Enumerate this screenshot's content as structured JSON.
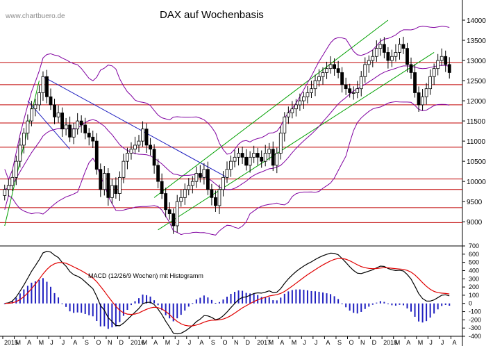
{
  "watermark": "www.chartbuero.de",
  "colors": {
    "candle_fill": "#000000",
    "bollinger": "#8000a0",
    "support_lines": "#c00000",
    "channel_lines": "#00a000",
    "downtrend_lines": "#2020c0",
    "macd_line": "#000000",
    "signal_line": "#e00000",
    "histogram": "#2020c0"
  },
  "chart_data": [
    {
      "type": "candlestick",
      "title": "DAX auf Wochenbasis",
      "ylim": [
        8400,
        14500
      ],
      "y_ticks": [
        9000,
        9500,
        10000,
        10500,
        11000,
        11500,
        12000,
        12500,
        13000,
        13500,
        14000
      ],
      "y_tick_labels": [
        "9000",
        "9500",
        "10000",
        "10500",
        "11000",
        "11500",
        "12000",
        "12500",
        "13000",
        "13500",
        "14000"
      ],
      "horizontal_levels": [
        8980,
        9350,
        9800,
        10060,
        10850,
        11450,
        11900,
        12400,
        12950
      ],
      "closes": [
        9800,
        9900,
        10100,
        10500,
        10900,
        11200,
        11500,
        11800,
        11900,
        12200,
        12600,
        12100,
        11900,
        11600,
        11700,
        11300,
        11400,
        11100,
        11300,
        11500,
        11400,
        11200,
        11100,
        11000,
        10300,
        9800,
        10200,
        9600,
        9900,
        9700,
        10100,
        10500,
        10700,
        10800,
        10900,
        11000,
        11300,
        10900,
        10800,
        10400,
        10000,
        9700,
        9300,
        9200,
        8900,
        9500,
        9600,
        9800,
        9900,
        10000,
        10200,
        10100,
        10300,
        9800,
        9600,
        9400,
        9800,
        10100,
        10300,
        10500,
        10600,
        10700,
        10600,
        10400,
        10600,
        10700,
        10600,
        10500,
        10700,
        10800,
        10400,
        10700,
        11200,
        11600,
        11700,
        11800,
        11900,
        12000,
        12100,
        12200,
        12300,
        12500,
        12600,
        12700,
        12800,
        12900,
        12800,
        12700,
        12400,
        12300,
        12200,
        12200,
        12300,
        12600,
        12900,
        13000,
        13100,
        13300,
        13400,
        13200,
        13000,
        13100,
        13200,
        13400,
        13300,
        12900,
        12700,
        12200,
        11900,
        12100,
        12300,
        12600,
        12800,
        13000,
        13100,
        12900,
        12700
      ],
      "macd_panel": {
        "title": "MACD (12/26/9 Wochen) mit Histogramm",
        "ylim": [
          -400,
          700
        ],
        "y_ticks": [
          -400,
          -300,
          -200,
          -100,
          0,
          100,
          200,
          300,
          400,
          500,
          600,
          700
        ],
        "y_tick_labels": [
          "-400",
          "-300",
          "-200",
          "-100",
          "0",
          "100",
          "200",
          "300",
          "400",
          "500",
          "600",
          "700"
        ]
      },
      "x_tick_labels": [
        "2015",
        "M",
        "A",
        "M",
        "J",
        "J",
        "A",
        "S",
        "O",
        "N",
        "D",
        "2016",
        "M",
        "A",
        "M",
        "J",
        "J",
        "A",
        "S",
        "O",
        "N",
        "D",
        "2017",
        "M",
        "A",
        "M",
        "J",
        "J",
        "A",
        "S",
        "O",
        "N",
        "D",
        "2018",
        "M",
        "A",
        "M",
        "J",
        "J",
        "A"
      ]
    }
  ]
}
